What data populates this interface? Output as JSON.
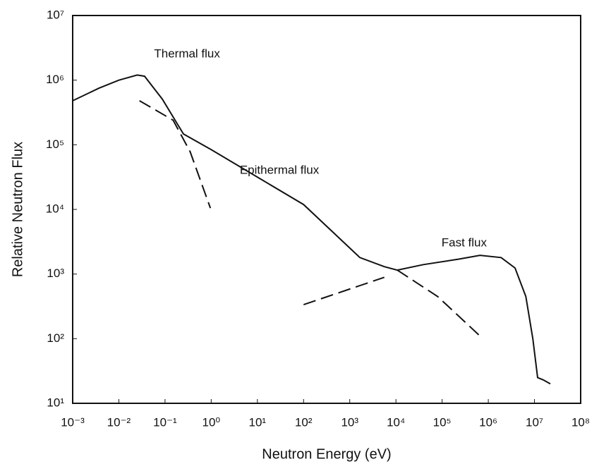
{
  "chart_data": {
    "type": "line",
    "x_label": "Neutron Energy (eV)",
    "y_label": "Relative Neutron Flux",
    "xscale": "log",
    "yscale": "log",
    "xlim": [
      0.001,
      100000000
    ],
    "ylim": [
      10,
      10000000
    ],
    "xticks": [
      {
        "value": 0.001,
        "label": "10⁻³"
      },
      {
        "value": 0.01,
        "label": "10⁻²"
      },
      {
        "value": 0.1,
        "label": "10⁻¹"
      },
      {
        "value": 1,
        "label": "10⁰"
      },
      {
        "value": 10,
        "label": "10¹"
      },
      {
        "value": 100,
        "label": "10²"
      },
      {
        "value": 1000,
        "label": "10³"
      },
      {
        "value": 10000,
        "label": "10⁴"
      },
      {
        "value": 100000,
        "label": "10⁵"
      },
      {
        "value": 1000000,
        "label": "10⁶"
      },
      {
        "value": 10000000,
        "label": "10⁷"
      },
      {
        "value": 100000000,
        "label": "10⁸"
      }
    ],
    "yticks": [
      {
        "value": 10,
        "label": "10¹"
      },
      {
        "value": 100,
        "label": "10²"
      },
      {
        "value": 1000,
        "label": "10³"
      },
      {
        "value": 10000,
        "label": "10⁴"
      },
      {
        "value": 100000,
        "label": "10⁵"
      },
      {
        "value": 1000000,
        "label": "10⁶"
      },
      {
        "value": 10000000,
        "label": "10⁷"
      }
    ],
    "annotations": [
      {
        "text": "Thermal flux",
        "x": 0.3,
        "y": 2500000
      },
      {
        "text": "Epithermal flux",
        "x": 30,
        "y": 40000
      },
      {
        "text": "Fast flux",
        "x": 300000,
        "y": 3000
      }
    ],
    "series": [
      {
        "color": "#111111",
        "style": "solid",
        "x": [
          0.001,
          0.0037,
          0.01,
          0.025,
          0.036,
          0.087,
          0.25,
          1,
          100,
          1660,
          5600,
          10700,
          39000,
          230000,
          660000,
          1900000,
          3800000,
          6500000,
          9200000,
          11700000,
          15500000,
          22000000
        ],
        "values": [
          480000,
          750000,
          1000000,
          1200000,
          1150000,
          510000,
          147000,
          84000,
          11900,
          1800,
          1300,
          1150,
          1400,
          1700,
          1950,
          1800,
          1240,
          450,
          100,
          25,
          23,
          20
        ]
      },
      {
        "color": "#111111",
        "style": "dashed",
        "x": [
          0.028,
          0.15,
          0.35,
          0.96
        ],
        "values": [
          480000,
          240000,
          78000,
          10500
        ]
      },
      {
        "color": "#111111",
        "style": "dashed",
        "x": [
          10700,
          80000,
          660000
        ],
        "values": [
          1150,
          450,
          110
        ]
      },
      {
        "color": "#111111",
        "style": "dashed",
        "x": [
          100,
          5600
        ],
        "values": [
          336,
          890
        ]
      }
    ]
  }
}
